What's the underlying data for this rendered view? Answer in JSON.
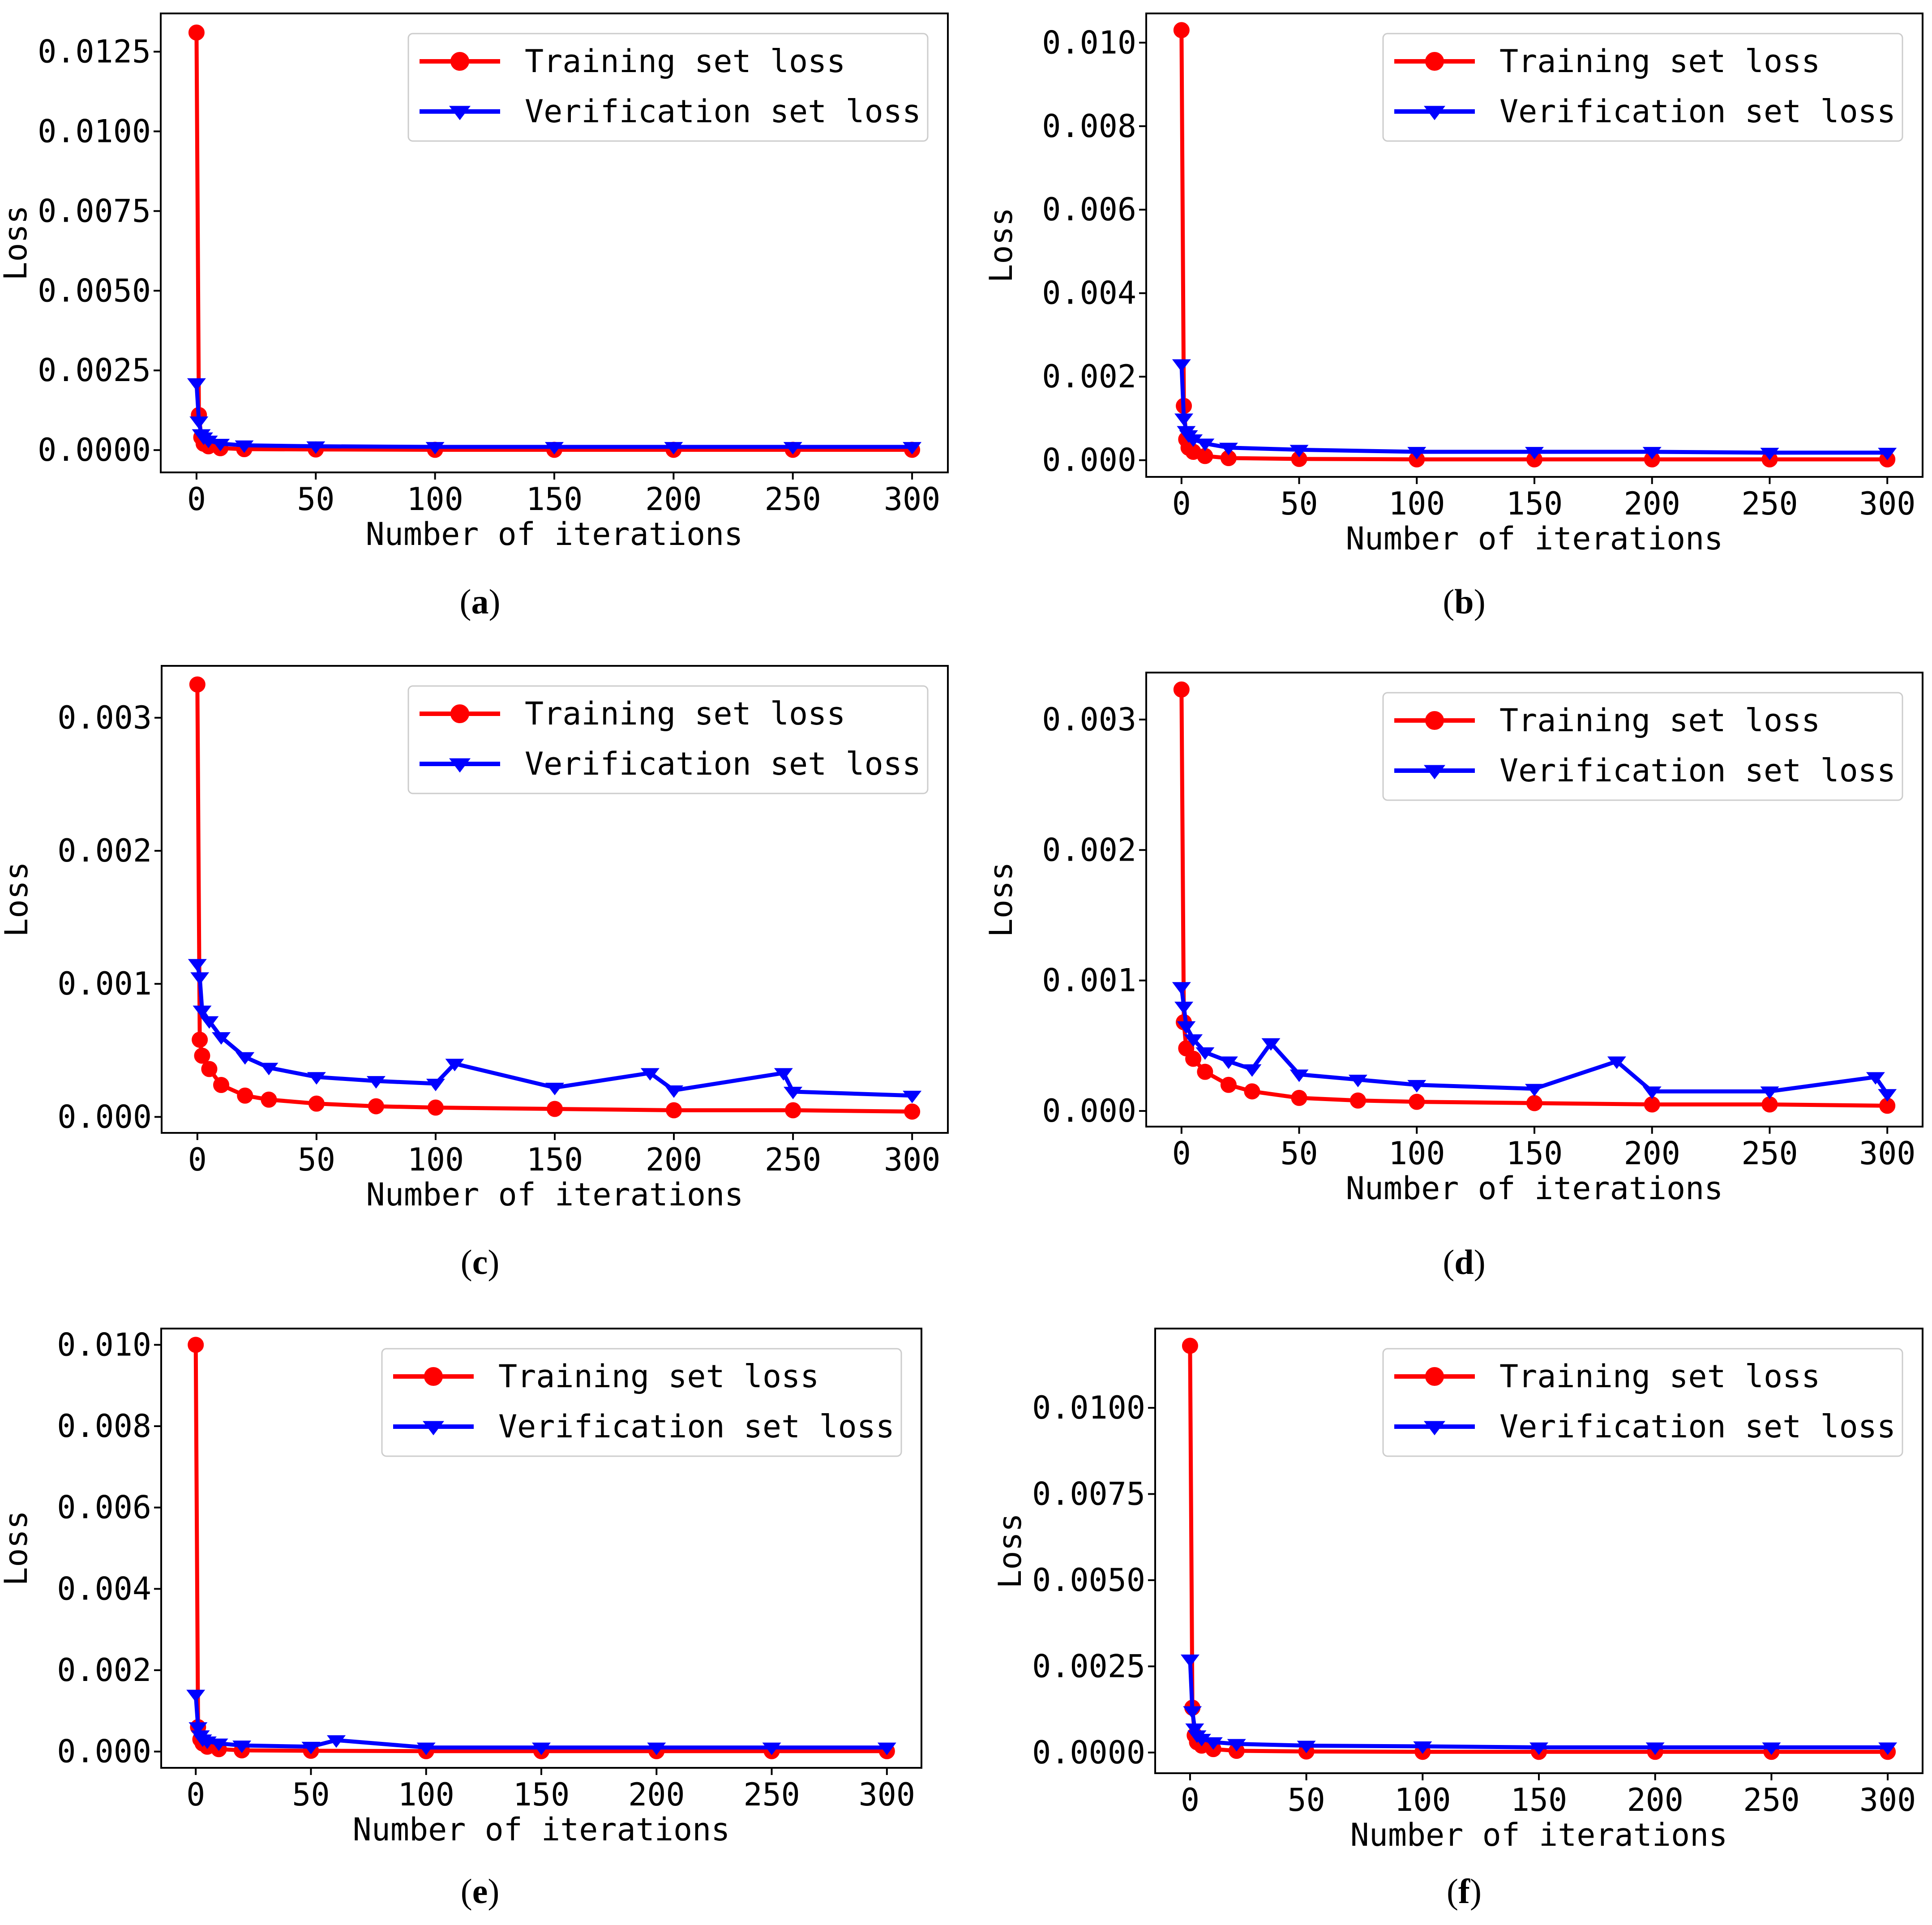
{
  "colors": {
    "train": "#ff0000",
    "val": "#0000ff",
    "axis": "#000000",
    "legend_border": "#cccccc"
  },
  "legend_placement": "top-right",
  "chart_data": [
    {
      "type": "line",
      "panel_label": "a",
      "title": "",
      "xlabel": "Number of iterations",
      "ylabel": "Loss",
      "xlim": [
        -15,
        315
      ],
      "ylim": [
        -0.0007,
        0.0137
      ],
      "xticks": [
        0,
        50,
        100,
        150,
        200,
        250,
        300
      ],
      "xtick_labels": [
        "0",
        "50",
        "100",
        "150",
        "200",
        "250",
        "300"
      ],
      "yticks": [
        0.0,
        0.0025,
        0.005,
        0.0075,
        0.01,
        0.0125
      ],
      "ytick_labels": [
        "0.0000",
        "0.0025",
        "0.0050",
        "0.0075",
        "0.0100",
        "0.0125"
      ],
      "grid": false,
      "series": [
        {
          "name": "Training set loss",
          "marker": "circle",
          "color": "#ff0000",
          "x": [
            0,
            1,
            2,
            3,
            5,
            10,
            20,
            50,
            100,
            150,
            200,
            250,
            300
          ],
          "y": [
            0.0131,
            0.0011,
            0.0004,
            0.0002,
            0.00012,
            6e-05,
            3e-05,
            2e-05,
            1e-05,
            1e-05,
            1e-05,
            1e-05,
            1e-05
          ]
        },
        {
          "name": "Verification set loss",
          "marker": "triangle-down",
          "color": "#0000ff",
          "x": [
            0,
            1,
            2,
            3,
            5,
            10,
            20,
            50,
            100,
            150,
            200,
            250,
            300
          ],
          "y": [
            0.0021,
            0.0009,
            0.0005,
            0.0004,
            0.0003,
            0.0002,
            0.00015,
            0.00012,
            0.0001,
            0.0001,
            0.0001,
            0.0001,
            0.0001
          ]
        }
      ]
    },
    {
      "type": "line",
      "panel_label": "b",
      "title": "",
      "xlabel": "Number of iterations",
      "ylabel": "Loss",
      "xlim": [
        -15,
        315
      ],
      "ylim": [
        -0.0004,
        0.0107
      ],
      "xticks": [
        0,
        50,
        100,
        150,
        200,
        250,
        300
      ],
      "xtick_labels": [
        "0",
        "50",
        "100",
        "150",
        "200",
        "250",
        "300"
      ],
      "yticks": [
        0.0,
        0.002,
        0.004,
        0.006,
        0.008,
        0.01
      ],
      "ytick_labels": [
        "0.000",
        "0.002",
        "0.004",
        "0.006",
        "0.008",
        "0.010"
      ],
      "grid": false,
      "series": [
        {
          "name": "Training set loss",
          "marker": "circle",
          "color": "#ff0000",
          "x": [
            0,
            1,
            2,
            3,
            5,
            10,
            20,
            50,
            100,
            150,
            200,
            250,
            300
          ],
          "y": [
            0.0103,
            0.0013,
            0.0005,
            0.0003,
            0.0002,
            0.0001,
            5e-05,
            3e-05,
            2e-05,
            2e-05,
            2e-05,
            2e-05,
            2e-05
          ]
        },
        {
          "name": "Verification set loss",
          "marker": "triangle-down",
          "color": "#0000ff",
          "x": [
            0,
            1,
            2,
            3,
            5,
            10,
            20,
            50,
            100,
            150,
            200,
            250,
            300
          ],
          "y": [
            0.0023,
            0.001,
            0.0007,
            0.0006,
            0.0005,
            0.0004,
            0.0003,
            0.00025,
            0.0002,
            0.0002,
            0.0002,
            0.00018,
            0.00018
          ]
        }
      ]
    },
    {
      "type": "line",
      "panel_label": "c",
      "title": "",
      "xlabel": "Number of iterations",
      "ylabel": "Loss",
      "xlim": [
        -15,
        315
      ],
      "ylim": [
        -0.00012,
        0.00339
      ],
      "xticks": [
        0,
        50,
        100,
        150,
        200,
        250,
        300
      ],
      "xtick_labels": [
        "0",
        "50",
        "100",
        "150",
        "200",
        "250",
        "300"
      ],
      "yticks": [
        0.0,
        0.001,
        0.002,
        0.003
      ],
      "ytick_labels": [
        "0.000",
        "0.001",
        "0.002",
        "0.003"
      ],
      "grid": false,
      "series": [
        {
          "name": "Training set loss",
          "marker": "circle",
          "color": "#ff0000",
          "x": [
            0,
            1,
            2,
            5,
            10,
            20,
            30,
            50,
            75,
            100,
            150,
            200,
            250,
            300
          ],
          "y": [
            0.00325,
            0.00058,
            0.00046,
            0.00036,
            0.00024,
            0.00016,
            0.00013,
            0.0001,
            8e-05,
            7e-05,
            6e-05,
            5e-05,
            5e-05,
            4e-05
          ]
        },
        {
          "name": "Verification set loss",
          "marker": "triangle-down",
          "color": "#0000ff",
          "x": [
            0,
            1,
            2,
            5,
            10,
            20,
            30,
            50,
            75,
            100,
            108,
            150,
            190,
            200,
            246,
            250,
            300
          ],
          "y": [
            0.00115,
            0.00105,
            0.0008,
            0.00072,
            0.0006,
            0.00045,
            0.00037,
            0.0003,
            0.00027,
            0.00025,
            0.0004,
            0.00022,
            0.00033,
            0.0002,
            0.00033,
            0.00019,
            0.00016
          ]
        }
      ]
    },
    {
      "type": "line",
      "panel_label": "d",
      "title": "",
      "xlabel": "Number of iterations",
      "ylabel": "Loss",
      "xlim": [
        -15,
        315
      ],
      "ylim": [
        -0.00012,
        0.00336
      ],
      "xticks": [
        0,
        50,
        100,
        150,
        200,
        250,
        300
      ],
      "xtick_labels": [
        "0",
        "50",
        "100",
        "150",
        "200",
        "250",
        "300"
      ],
      "yticks": [
        0.0,
        0.001,
        0.002,
        0.003
      ],
      "ytick_labels": [
        "0.000",
        "0.001",
        "0.002",
        "0.003"
      ],
      "grid": false,
      "series": [
        {
          "name": "Training set loss",
          "marker": "circle",
          "color": "#ff0000",
          "x": [
            0,
            1,
            2,
            5,
            10,
            20,
            30,
            50,
            75,
            100,
            150,
            200,
            250,
            300
          ],
          "y": [
            0.00323,
            0.00068,
            0.00048,
            0.0004,
            0.0003,
            0.0002,
            0.00015,
            0.0001,
            8e-05,
            7e-05,
            6e-05,
            5e-05,
            5e-05,
            4e-05
          ]
        },
        {
          "name": "Verification set loss",
          "marker": "triangle-down",
          "color": "#0000ff",
          "x": [
            0,
            1,
            2,
            5,
            10,
            20,
            30,
            38,
            50,
            75,
            100,
            150,
            185,
            200,
            250,
            295,
            300
          ],
          "y": [
            0.00095,
            0.0008,
            0.00065,
            0.00055,
            0.00045,
            0.00038,
            0.00032,
            0.00052,
            0.00028,
            0.00024,
            0.0002,
            0.00017,
            0.00038,
            0.00015,
            0.00015,
            0.00026,
            0.00013
          ]
        }
      ]
    },
    {
      "type": "line",
      "panel_label": "e",
      "title": "",
      "xlabel": "Number of iterations",
      "ylabel": "Loss",
      "xlim": [
        -15,
        315
      ],
      "ylim": [
        -0.0004,
        0.0104
      ],
      "xticks": [
        0,
        50,
        100,
        150,
        200,
        250,
        300
      ],
      "xtick_labels": [
        "0",
        "50",
        "100",
        "150",
        "200",
        "250",
        "300"
      ],
      "yticks": [
        0.0,
        0.002,
        0.004,
        0.006,
        0.008,
        0.01
      ],
      "ytick_labels": [
        "0.000",
        "0.002",
        "0.004",
        "0.006",
        "0.008",
        "0.010"
      ],
      "grid": false,
      "series": [
        {
          "name": "Training set loss",
          "marker": "circle",
          "color": "#ff0000",
          "x": [
            0,
            1,
            2,
            3,
            5,
            10,
            20,
            50,
            100,
            150,
            200,
            250,
            300
          ],
          "y": [
            0.01,
            0.0006,
            0.0003,
            0.0002,
            0.00012,
            6e-05,
            3e-05,
            2e-05,
            1e-05,
            1e-05,
            1e-05,
            1e-05,
            1e-05
          ]
        },
        {
          "name": "Verification set loss",
          "marker": "triangle-down",
          "color": "#0000ff",
          "x": [
            0,
            1,
            2,
            3,
            5,
            10,
            20,
            50,
            61,
            100,
            150,
            200,
            250,
            300
          ],
          "y": [
            0.0014,
            0.0006,
            0.0004,
            0.0003,
            0.00025,
            0.0002,
            0.00015,
            0.00012,
            0.00028,
            0.0001,
            0.0001,
            0.0001,
            0.0001,
            0.0001
          ]
        }
      ]
    },
    {
      "type": "line",
      "panel_label": "f",
      "title": "",
      "xlabel": "Number of iterations",
      "ylabel": "Loss",
      "xlim": [
        -15,
        315
      ],
      "ylim": [
        -0.0006,
        0.0123
      ],
      "xticks": [
        0,
        50,
        100,
        150,
        200,
        250,
        300
      ],
      "xtick_labels": [
        "0",
        "50",
        "100",
        "150",
        "200",
        "250",
        "300"
      ],
      "yticks": [
        0.0,
        0.0025,
        0.005,
        0.0075,
        0.01
      ],
      "ytick_labels": [
        "0.0000",
        "0.0025",
        "0.0050",
        "0.0075",
        "0.0100"
      ],
      "grid": false,
      "series": [
        {
          "name": "Training set loss",
          "marker": "circle",
          "color": "#ff0000",
          "x": [
            0,
            1,
            2,
            3,
            5,
            10,
            20,
            50,
            100,
            150,
            200,
            250,
            300
          ],
          "y": [
            0.0118,
            0.0013,
            0.0005,
            0.0003,
            0.0002,
            0.0001,
            5e-05,
            3e-05,
            2e-05,
            2e-05,
            2e-05,
            2e-05,
            2e-05
          ]
        },
        {
          "name": "Verification set loss",
          "marker": "triangle-down",
          "color": "#0000ff",
          "x": [
            0,
            1,
            2,
            3,
            5,
            10,
            20,
            50,
            100,
            150,
            200,
            250,
            300
          ],
          "y": [
            0.0027,
            0.0012,
            0.0007,
            0.0005,
            0.0004,
            0.0003,
            0.00025,
            0.0002,
            0.00018,
            0.00015,
            0.00015,
            0.00015,
            0.00015
          ]
        }
      ]
    }
  ]
}
